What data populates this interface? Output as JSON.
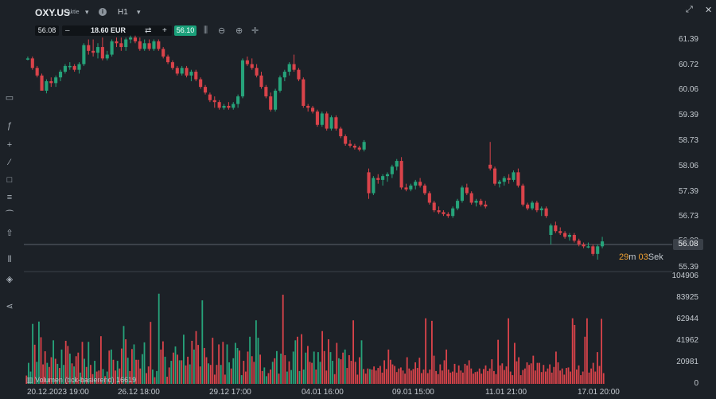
{
  "header": {
    "symbol": "OXY.US",
    "type": "Aktie",
    "timeframe": "H1",
    "info_icon": "info-icon",
    "caret_icon": "chevron-down-icon"
  },
  "order": {
    "bid": "56.08",
    "ask": "56.10",
    "minus": "–",
    "plus": "+",
    "amount": "18.60 EUR"
  },
  "current": {
    "price_tag": "56.08",
    "countdown_min": "29",
    "countdown_min_unit": "m",
    "countdown_sec": "03",
    "countdown_sec_unit": "Sek"
  },
  "volume_label": "Volumen (tick-basierend) 16619",
  "colors": {
    "up": "#26a37a",
    "down": "#d9434a",
    "bg": "#1c2127",
    "accent": "#1aa07a"
  },
  "chart_data": {
    "type": "candlestick",
    "price_axis": [
      "61.39",
      "60.72",
      "60.06",
      "59.39",
      "58.73",
      "58.06",
      "57.39",
      "56.73",
      "56.08",
      "55.39"
    ],
    "ylim": [
      55.39,
      61.39
    ],
    "volume_axis": [
      "104906",
      "83925",
      "62944",
      "41962",
      "20981",
      "0"
    ],
    "volume_ylim": [
      0,
      104906
    ],
    "x_ticks": [
      "20.12.2023 19:00",
      "26.12 18:00",
      "29.12 17:00",
      "04.01 16:00",
      "09.01 15:00",
      "11.01 21:00",
      "17.01 20:00"
    ],
    "candles": [
      [
        60.9,
        60.95,
        60.85,
        60.9
      ],
      [
        60.9,
        60.95,
        60.6,
        60.65
      ],
      [
        60.65,
        60.7,
        60.4,
        60.45
      ],
      [
        60.45,
        60.5,
        60.1,
        60.05
      ],
      [
        60.05,
        60.35,
        59.98,
        60.3
      ],
      [
        60.3,
        60.4,
        60.15,
        60.25
      ],
      [
        60.25,
        60.45,
        60.15,
        60.4
      ],
      [
        60.4,
        60.6,
        60.3,
        60.55
      ],
      [
        60.55,
        60.75,
        60.5,
        60.7
      ],
      [
        60.7,
        60.8,
        60.6,
        60.7
      ],
      [
        60.7,
        60.75,
        60.55,
        60.6
      ],
      [
        60.6,
        60.8,
        60.5,
        60.75
      ],
      [
        60.75,
        61.3,
        60.7,
        61.25
      ],
      [
        61.25,
        61.4,
        61.0,
        61.1
      ],
      [
        61.1,
        61.4,
        60.95,
        61.05
      ],
      [
        61.05,
        61.3,
        60.9,
        61.2
      ],
      [
        61.2,
        61.45,
        60.85,
        60.9
      ],
      [
        60.9,
        61.1,
        60.85,
        61.0
      ],
      [
        61.0,
        61.4,
        60.95,
        61.35
      ],
      [
        61.35,
        61.45,
        61.2,
        61.3
      ],
      [
        61.3,
        61.45,
        61.1,
        61.2
      ],
      [
        61.2,
        61.45,
        61.1,
        61.4
      ],
      [
        61.4,
        61.5,
        61.3,
        61.45
      ],
      [
        61.45,
        61.5,
        61.3,
        61.35
      ],
      [
        61.35,
        61.45,
        61.1,
        61.15
      ],
      [
        61.15,
        61.4,
        61.1,
        61.3
      ],
      [
        61.3,
        61.4,
        61.1,
        61.15
      ],
      [
        61.15,
        61.4,
        61.1,
        61.35
      ],
      [
        61.35,
        61.4,
        61.1,
        61.15
      ],
      [
        61.15,
        61.2,
        60.9,
        60.95
      ],
      [
        60.95,
        61.0,
        60.75,
        60.8
      ],
      [
        60.8,
        60.85,
        60.6,
        60.65
      ],
      [
        60.65,
        60.7,
        60.45,
        60.5
      ],
      [
        60.5,
        60.7,
        60.45,
        60.65
      ],
      [
        60.65,
        60.7,
        60.4,
        60.45
      ],
      [
        60.45,
        60.6,
        60.3,
        60.55
      ],
      [
        60.55,
        60.6,
        60.3,
        60.35
      ],
      [
        60.35,
        60.4,
        60.1,
        60.15
      ],
      [
        60.15,
        60.2,
        59.95,
        60.0
      ],
      [
        59.95,
        60.0,
        59.75,
        59.8
      ],
      [
        59.8,
        59.9,
        59.6,
        59.75
      ],
      [
        59.75,
        59.8,
        59.55,
        59.6
      ],
      [
        59.6,
        59.7,
        59.55,
        59.65
      ],
      [
        59.65,
        59.75,
        59.55,
        59.6
      ],
      [
        59.6,
        59.75,
        59.55,
        59.7
      ],
      [
        59.7,
        59.95,
        59.6,
        59.9
      ],
      [
        59.9,
        60.9,
        59.85,
        60.85
      ],
      [
        60.85,
        60.95,
        60.7,
        60.75
      ],
      [
        60.75,
        60.9,
        60.6,
        60.65
      ],
      [
        60.65,
        60.75,
        60.4,
        60.45
      ],
      [
        60.45,
        60.55,
        60.1,
        60.15
      ],
      [
        60.15,
        60.2,
        59.85,
        59.9
      ],
      [
        59.9,
        60.0,
        59.5,
        59.55
      ],
      [
        59.55,
        60.1,
        59.5,
        60.05
      ],
      [
        60.05,
        60.45,
        60.0,
        60.4
      ],
      [
        60.4,
        60.6,
        60.3,
        60.55
      ],
      [
        60.55,
        60.8,
        60.45,
        60.75
      ],
      [
        60.75,
        61.0,
        60.55,
        60.6
      ],
      [
        60.6,
        60.65,
        60.3,
        60.35
      ],
      [
        60.35,
        60.4,
        59.6,
        59.65
      ],
      [
        59.65,
        59.7,
        59.5,
        59.6
      ],
      [
        59.6,
        59.65,
        59.45,
        59.5
      ],
      [
        59.5,
        59.55,
        59.1,
        59.15
      ],
      [
        59.15,
        59.5,
        59.1,
        59.45
      ],
      [
        59.45,
        59.5,
        59.0,
        59.05
      ],
      [
        59.05,
        59.4,
        59.0,
        59.35
      ],
      [
        59.35,
        59.4,
        59.0,
        59.05
      ],
      [
        59.05,
        59.1,
        58.8,
        58.85
      ],
      [
        58.85,
        58.9,
        58.6,
        58.65
      ],
      [
        58.65,
        58.75,
        58.55,
        58.6
      ],
      [
        58.6,
        58.65,
        58.5,
        58.55
      ],
      [
        58.55,
        58.6,
        58.45,
        58.5
      ],
      [
        58.5,
        58.75,
        58.45,
        58.7
      ],
      [
        57.9,
        58.0,
        57.2,
        57.35
      ],
      [
        57.35,
        57.8,
        57.3,
        57.75
      ],
      [
        57.75,
        57.85,
        57.6,
        57.7
      ],
      [
        57.7,
        57.85,
        57.55,
        57.8
      ],
      [
        57.8,
        57.9,
        57.65,
        57.85
      ],
      [
        57.85,
        58.1,
        57.75,
        58.05
      ],
      [
        58.05,
        58.25,
        57.95,
        58.2
      ],
      [
        58.2,
        58.3,
        57.45,
        57.5
      ],
      [
        57.5,
        57.6,
        57.4,
        57.45
      ],
      [
        57.45,
        57.6,
        57.4,
        57.55
      ],
      [
        57.55,
        57.7,
        57.45,
        57.65
      ],
      [
        57.65,
        57.75,
        57.5,
        57.55
      ],
      [
        57.55,
        57.6,
        57.3,
        57.35
      ],
      [
        57.35,
        57.4,
        57.05,
        57.1
      ],
      [
        57.1,
        57.15,
        56.85,
        56.9
      ],
      [
        56.9,
        57.0,
        56.8,
        56.85
      ],
      [
        56.85,
        56.9,
        56.75,
        56.8
      ],
      [
        56.8,
        56.85,
        56.7,
        56.75
      ],
      [
        56.75,
        57.0,
        56.7,
        56.95
      ],
      [
        56.95,
        57.2,
        56.9,
        57.15
      ],
      [
        57.15,
        57.55,
        57.1,
        57.5
      ],
      [
        57.5,
        57.6,
        57.3,
        57.35
      ],
      [
        57.35,
        57.4,
        57.05,
        57.1
      ],
      [
        57.1,
        57.2,
        57.0,
        57.15
      ],
      [
        57.15,
        57.2,
        57.0,
        57.05
      ],
      [
        57.05,
        57.15,
        56.95,
        57.0
      ],
      [
        58.1,
        58.7,
        57.95,
        58.0
      ],
      [
        58.0,
        58.05,
        57.55,
        57.6
      ],
      [
        57.6,
        57.7,
        57.5,
        57.65
      ],
      [
        57.65,
        57.8,
        57.55,
        57.75
      ],
      [
        57.75,
        57.85,
        57.6,
        57.7
      ],
      [
        57.7,
        57.95,
        57.65,
        57.9
      ],
      [
        57.9,
        58.0,
        57.5,
        57.55
      ],
      [
        57.55,
        57.6,
        57.0,
        57.05
      ],
      [
        57.05,
        57.1,
        56.9,
        56.95
      ],
      [
        56.95,
        57.15,
        56.9,
        57.1
      ],
      [
        57.1,
        57.15,
        56.85,
        56.9
      ],
      [
        56.9,
        57.0,
        56.75,
        56.95
      ],
      [
        56.95,
        57.0,
        56.7,
        56.75
      ],
      [
        56.25,
        56.55,
        56.0,
        56.5
      ],
      [
        56.5,
        56.6,
        56.3,
        56.35
      ],
      [
        56.35,
        56.45,
        56.25,
        56.3
      ],
      [
        56.3,
        56.35,
        56.15,
        56.2
      ],
      [
        56.2,
        56.3,
        56.1,
        56.25
      ],
      [
        56.25,
        56.3,
        56.05,
        56.1
      ],
      [
        56.1,
        56.15,
        55.95,
        56.0
      ],
      [
        56.0,
        56.05,
        55.9,
        55.95
      ],
      [
        55.95,
        56.05,
        55.9,
        55.95
      ],
      [
        55.95,
        56.0,
        55.7,
        55.75
      ],
      [
        55.75,
        56.0,
        55.6,
        55.95
      ],
      [
        55.95,
        56.2,
        55.9,
        56.08
      ]
    ],
    "volumes": [
      8100,
      20500,
      12000,
      58500,
      38200,
      21500,
      60800,
      45500,
      19000,
      31800,
      20500,
      16500,
      26000,
      42500,
      24500,
      19500,
      15500,
      33500,
      18500,
      42000,
      37000,
      29500,
      20000,
      17000,
      27000,
      30500,
      11000,
      41000,
      24500,
      16500,
      41000,
      18500,
      9500,
      22500,
      12000,
      13000,
      46500,
      14500,
      7500,
      12000,
      32500,
      33500,
      23500,
      13000,
      22500,
      15000,
      34500,
      56500,
      43500,
      25500,
      12500,
      34000,
      38500,
      23500,
      23500,
      15000,
      29000,
      40500,
      10500,
      17000,
      60500,
      14000,
      6500,
      12500,
      88000,
      33500,
      41500,
      26500,
      7000,
      16000,
      22500,
      30500,
      36500,
      28500,
      23000,
      23000,
      48000,
      18000,
      26500,
      19000,
      42000,
      33500,
      51500,
      38000,
      17000,
      81500,
      35000,
      26000,
      20000,
      18500,
      45000,
      9000,
      18500,
      38500,
      18500,
      41000,
      9000,
      38500,
      21000,
      15000,
      25000,
      40000,
      35000,
      32500,
      8500,
      22500,
      12000,
      31500,
      46000,
      27000,
      21500,
      62000,
      45000,
      28500,
      12500,
      16000,
      7500,
      10500,
      14000,
      21500,
      25000,
      32000,
      10000,
      29500,
      87000,
      28000,
      12000,
      22000,
      13500,
      31500,
      42500,
      46000,
      12500,
      48500,
      14000,
      30500,
      37000,
      21500,
      20500,
      31500,
      14000,
      31000,
      21500,
      51500,
      32000,
      13000,
      43500,
      31000,
      22500,
      9500,
      40000,
      25000,
      24000,
      30500,
      33500,
      15500,
      28000,
      22500,
      62000,
      21500,
      9000,
      26000,
      42500,
      14500,
      10000,
      15000,
      14500,
      14000,
      17000,
      13000,
      15500,
      17500,
      11000,
      23000,
      14500,
      33500,
      23500,
      19000,
      17500,
      11500,
      15000,
      16000,
      13000,
      10000,
      26000,
      15000,
      13000,
      14500,
      21000,
      15500,
      25500,
      10500,
      14000,
      64000,
      10500,
      14000,
      61500,
      27500,
      12500,
      9500,
      19000,
      13000,
      23000,
      33500,
      14000,
      11000,
      12000,
      19500,
      11000,
      18000,
      13000,
      11000,
      19500,
      18000,
      23000,
      15000,
      10000,
      11500,
      12000,
      15000,
      10000,
      14500,
      18000,
      12500,
      15000,
      24000,
      12500,
      9500,
      43000,
      18000,
      20000,
      13500,
      17000,
      64000,
      12000,
      8500,
      40000,
      22000,
      26000,
      8500,
      13500,
      15000,
      21000,
      18500,
      20000,
      27500,
      13000,
      20500,
      20500,
      11500,
      18500,
      12000,
      15000,
      19000,
      11000,
      16500,
      31500,
      21000,
      13000,
      15000,
      9000,
      15500,
      16000,
      12000,
      64000,
      57500,
      14000,
      18000,
      8500,
      12000,
      46000,
      64000,
      11000,
      15000,
      20500,
      12000,
      31000,
      17500,
      63500,
      10500
    ],
    "volume_up": [
      false,
      true,
      true,
      true,
      false,
      true,
      true,
      false,
      false,
      false,
      true,
      false,
      false,
      true,
      false,
      true,
      false,
      true,
      true,
      false,
      false,
      true,
      false,
      true,
      false,
      false,
      true,
      false,
      true,
      false,
      true,
      false,
      false,
      true,
      false,
      false,
      false,
      true,
      false,
      true,
      false,
      true,
      false,
      false,
      true,
      false,
      false,
      true,
      false,
      true,
      false,
      false,
      true,
      false,
      false,
      false,
      true,
      true,
      false,
      false,
      false,
      true,
      false,
      true,
      true,
      false,
      false,
      true,
      false,
      false,
      true,
      false,
      true,
      false,
      true,
      false,
      true,
      false,
      false,
      true,
      false,
      true,
      false,
      false,
      false,
      true,
      false,
      false,
      true,
      false,
      false,
      false,
      false,
      false,
      true,
      false,
      false,
      true,
      true,
      false,
      true,
      true,
      true,
      false,
      true,
      false,
      false,
      false,
      true,
      false,
      false,
      true,
      true,
      false,
      false,
      true,
      true,
      false,
      false,
      true,
      false,
      true,
      false,
      true,
      false,
      false,
      true,
      false,
      true,
      true,
      true,
      false,
      true,
      false,
      true,
      true,
      false,
      false,
      false,
      true,
      false,
      true,
      true,
      false,
      false,
      false,
      false,
      true,
      true,
      false,
      false,
      true,
      false,
      false,
      true,
      false,
      false,
      false,
      false,
      false,
      false,
      false,
      true,
      false,
      false,
      false,
      true,
      false,
      false,
      false,
      false,
      false,
      false,
      false,
      false,
      false,
      false,
      false,
      false,
      false,
      false,
      false,
      false,
      false,
      false,
      false,
      false,
      false,
      false,
      false,
      false,
      false,
      false,
      false,
      false,
      false,
      false,
      false,
      false,
      false,
      false,
      false,
      false,
      false,
      false,
      false,
      false,
      false,
      false,
      false,
      false,
      false,
      false,
      false,
      false,
      false,
      false,
      false,
      false,
      false,
      false,
      false,
      false,
      false,
      false,
      false,
      false,
      false,
      false,
      false,
      false,
      false,
      false,
      false,
      false,
      false,
      false,
      false,
      false,
      false,
      false,
      false,
      false,
      false,
      false,
      false,
      false,
      false,
      false,
      false,
      false,
      false,
      false,
      false,
      false,
      false,
      false,
      false,
      false,
      false,
      false,
      false,
      false,
      false,
      false,
      false,
      false,
      false,
      false,
      false,
      false,
      false,
      false,
      false,
      false,
      false,
      false,
      false,
      false,
      false,
      false,
      false,
      false,
      false,
      false,
      false,
      false,
      false,
      false,
      false,
      false,
      false,
      false,
      false,
      false,
      false,
      false,
      false
    ]
  }
}
